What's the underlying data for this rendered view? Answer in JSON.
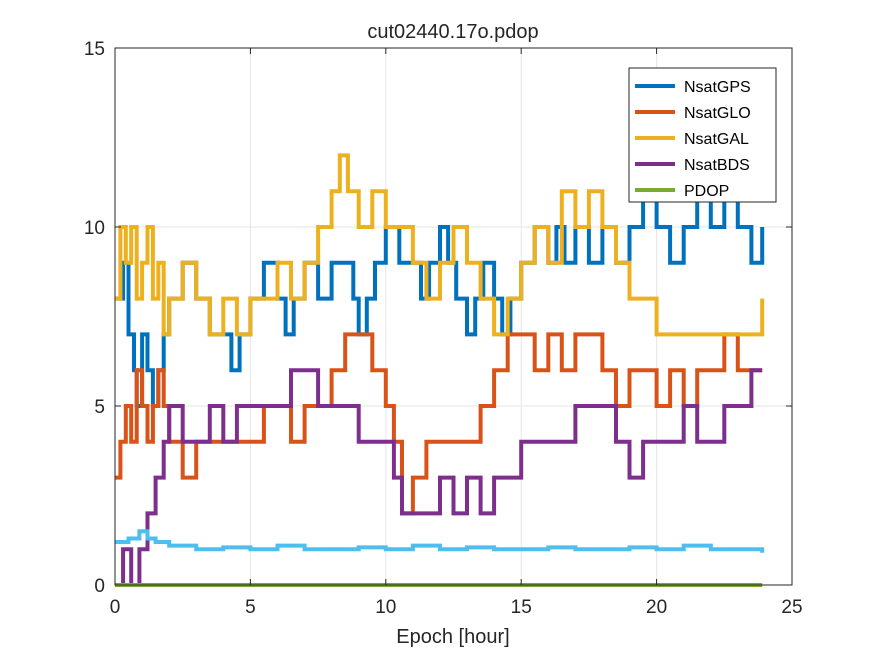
{
  "chart_data": {
    "type": "line",
    "title": "cut02440.17o.pdop",
    "xlabel": "Epoch [hour]",
    "ylabel": "",
    "xlim": [
      0,
      25
    ],
    "ylim": [
      0,
      15
    ],
    "xticks": [
      0,
      5,
      10,
      15,
      20,
      25
    ],
    "yticks": [
      0,
      5,
      10,
      15
    ],
    "grid": true,
    "legend_position": "top-right",
    "series": [
      {
        "name": "NsatGPS",
        "color": "#0072BD",
        "in_legend": true,
        "points": [
          [
            0,
            8
          ],
          [
            0.3,
            9
          ],
          [
            0.5,
            7
          ],
          [
            0.7,
            6
          ],
          [
            0.8,
            5
          ],
          [
            1.0,
            7
          ],
          [
            1.2,
            6
          ],
          [
            1.4,
            5
          ],
          [
            1.6,
            6
          ],
          [
            1.8,
            7
          ],
          [
            2.0,
            8
          ],
          [
            2.5,
            9
          ],
          [
            3.0,
            8
          ],
          [
            3.5,
            7
          ],
          [
            4.0,
            7
          ],
          [
            4.3,
            6
          ],
          [
            4.6,
            7
          ],
          [
            5.0,
            8
          ],
          [
            5.5,
            9
          ],
          [
            6.0,
            8
          ],
          [
            6.3,
            7
          ],
          [
            6.6,
            8
          ],
          [
            7.0,
            9
          ],
          [
            7.5,
            8
          ],
          [
            8.0,
            9
          ],
          [
            8.5,
            9
          ],
          [
            8.8,
            8
          ],
          [
            9.0,
            7
          ],
          [
            9.3,
            8
          ],
          [
            9.6,
            9
          ],
          [
            10.0,
            10
          ],
          [
            10.5,
            9
          ],
          [
            11.0,
            9
          ],
          [
            11.3,
            8
          ],
          [
            11.6,
            9
          ],
          [
            12.0,
            10
          ],
          [
            12.3,
            9
          ],
          [
            12.6,
            8
          ],
          [
            13.0,
            7
          ],
          [
            13.3,
            8
          ],
          [
            13.6,
            9
          ],
          [
            14.0,
            8
          ],
          [
            14.3,
            7
          ],
          [
            14.6,
            8
          ],
          [
            15.0,
            9
          ],
          [
            15.5,
            10
          ],
          [
            16.0,
            9
          ],
          [
            16.3,
            10
          ],
          [
            16.6,
            9
          ],
          [
            17.0,
            10
          ],
          [
            17.5,
            9
          ],
          [
            18.0,
            10
          ],
          [
            18.5,
            9
          ],
          [
            19.0,
            10
          ],
          [
            19.5,
            11
          ],
          [
            20.0,
            10
          ],
          [
            20.5,
            9
          ],
          [
            21.0,
            10
          ],
          [
            21.5,
            11
          ],
          [
            22.0,
            10
          ],
          [
            22.5,
            11
          ],
          [
            23.0,
            10
          ],
          [
            23.5,
            9
          ],
          [
            23.9,
            10
          ]
        ]
      },
      {
        "name": "NsatGLO",
        "color": "#D95319",
        "in_legend": true,
        "points": [
          [
            0,
            3
          ],
          [
            0.2,
            4
          ],
          [
            0.4,
            5
          ],
          [
            0.6,
            4
          ],
          [
            0.8,
            6
          ],
          [
            1.0,
            5
          ],
          [
            1.2,
            4
          ],
          [
            1.4,
            5
          ],
          [
            1.6,
            6
          ],
          [
            1.8,
            5
          ],
          [
            2.0,
            4
          ],
          [
            2.5,
            3
          ],
          [
            3.0,
            4
          ],
          [
            3.5,
            4
          ],
          [
            4.0,
            4
          ],
          [
            4.5,
            4
          ],
          [
            5.0,
            4
          ],
          [
            5.5,
            5
          ],
          [
            6.0,
            5
          ],
          [
            6.5,
            4
          ],
          [
            7.0,
            5
          ],
          [
            7.5,
            5
          ],
          [
            8.0,
            6
          ],
          [
            8.5,
            7
          ],
          [
            9.0,
            7
          ],
          [
            9.5,
            6
          ],
          [
            10.0,
            5
          ],
          [
            10.3,
            4
          ],
          [
            10.6,
            2
          ],
          [
            11.0,
            3
          ],
          [
            11.5,
            4
          ],
          [
            12.0,
            4
          ],
          [
            12.5,
            4
          ],
          [
            13.0,
            4
          ],
          [
            13.5,
            5
          ],
          [
            14.0,
            6
          ],
          [
            14.5,
            7
          ],
          [
            15.0,
            7
          ],
          [
            15.5,
            6
          ],
          [
            16.0,
            7
          ],
          [
            16.5,
            6
          ],
          [
            17.0,
            7
          ],
          [
            17.5,
            7
          ],
          [
            18.0,
            6
          ],
          [
            18.5,
            5
          ],
          [
            19.0,
            6
          ],
          [
            19.5,
            6
          ],
          [
            20.0,
            5
          ],
          [
            20.5,
            6
          ],
          [
            21.0,
            5
          ],
          [
            21.5,
            6
          ],
          [
            22.0,
            6
          ],
          [
            22.5,
            7
          ],
          [
            23.0,
            6
          ],
          [
            23.5,
            6
          ],
          [
            23.9,
            6
          ]
        ]
      },
      {
        "name": "NsatGAL",
        "color": "#EDB120",
        "in_legend": true,
        "points": [
          [
            0,
            8
          ],
          [
            0.2,
            10
          ],
          [
            0.4,
            9
          ],
          [
            0.6,
            10
          ],
          [
            0.8,
            8
          ],
          [
            1.0,
            9
          ],
          [
            1.2,
            10
          ],
          [
            1.4,
            8
          ],
          [
            1.6,
            9
          ],
          [
            1.8,
            7
          ],
          [
            2.0,
            8
          ],
          [
            2.5,
            9
          ],
          [
            3.0,
            8
          ],
          [
            3.5,
            7
          ],
          [
            4.0,
            8
          ],
          [
            4.5,
            7
          ],
          [
            5.0,
            8
          ],
          [
            5.5,
            8
          ],
          [
            6.0,
            9
          ],
          [
            6.5,
            8
          ],
          [
            7.0,
            9
          ],
          [
            7.5,
            10
          ],
          [
            8.0,
            11
          ],
          [
            8.3,
            12
          ],
          [
            8.6,
            11
          ],
          [
            9.0,
            10
          ],
          [
            9.5,
            11
          ],
          [
            10.0,
            10
          ],
          [
            10.5,
            10
          ],
          [
            11.0,
            9
          ],
          [
            11.5,
            8
          ],
          [
            12.0,
            9
          ],
          [
            12.5,
            10
          ],
          [
            13.0,
            9
          ],
          [
            13.5,
            8
          ],
          [
            14.0,
            7
          ],
          [
            14.5,
            8
          ],
          [
            15.0,
            9
          ],
          [
            15.5,
            10
          ],
          [
            16.0,
            9
          ],
          [
            16.5,
            11
          ],
          [
            17.0,
            10
          ],
          [
            17.5,
            11
          ],
          [
            18.0,
            10
          ],
          [
            18.5,
            9
          ],
          [
            19.0,
            8
          ],
          [
            19.5,
            8
          ],
          [
            20.0,
            7
          ],
          [
            20.5,
            7
          ],
          [
            21.0,
            7
          ],
          [
            21.5,
            7
          ],
          [
            22.0,
            7
          ],
          [
            22.5,
            7
          ],
          [
            23.0,
            7
          ],
          [
            23.5,
            7
          ],
          [
            23.9,
            8
          ]
        ]
      },
      {
        "name": "NsatBDS",
        "color": "#7E2F8E",
        "in_legend": true,
        "points": [
          [
            0,
            0
          ],
          [
            0.3,
            1
          ],
          [
            0.6,
            0
          ],
          [
            0.9,
            1
          ],
          [
            1.2,
            2
          ],
          [
            1.5,
            3
          ],
          [
            1.8,
            4
          ],
          [
            2.0,
            5
          ],
          [
            2.5,
            4
          ],
          [
            3.0,
            4
          ],
          [
            3.5,
            5
          ],
          [
            4.0,
            4
          ],
          [
            4.5,
            5
          ],
          [
            5.0,
            5
          ],
          [
            5.5,
            5
          ],
          [
            6.0,
            5
          ],
          [
            6.5,
            6
          ],
          [
            7.0,
            6
          ],
          [
            7.5,
            5
          ],
          [
            8.0,
            5
          ],
          [
            8.5,
            5
          ],
          [
            9.0,
            4
          ],
          [
            9.5,
            4
          ],
          [
            10.0,
            4
          ],
          [
            10.3,
            3
          ],
          [
            10.6,
            2
          ],
          [
            11.0,
            2
          ],
          [
            11.5,
            2
          ],
          [
            12.0,
            3
          ],
          [
            12.5,
            2
          ],
          [
            13.0,
            3
          ],
          [
            13.5,
            2
          ],
          [
            14.0,
            3
          ],
          [
            14.5,
            3
          ],
          [
            15.0,
            4
          ],
          [
            15.5,
            4
          ],
          [
            16.0,
            4
          ],
          [
            16.5,
            4
          ],
          [
            17.0,
            5
          ],
          [
            17.5,
            5
          ],
          [
            18.0,
            5
          ],
          [
            18.5,
            4
          ],
          [
            19.0,
            3
          ],
          [
            19.5,
            4
          ],
          [
            20.0,
            4
          ],
          [
            20.5,
            4
          ],
          [
            21.0,
            5
          ],
          [
            21.5,
            4
          ],
          [
            22.0,
            4
          ],
          [
            22.5,
            5
          ],
          [
            23.0,
            5
          ],
          [
            23.5,
            6
          ],
          [
            23.9,
            6
          ]
        ]
      },
      {
        "name": "PDOP",
        "color": "#77AC30",
        "in_legend": true,
        "points": [
          [
            0,
            0
          ],
          [
            23.9,
            0
          ]
        ]
      },
      {
        "name": "",
        "color": "#4DBEEE",
        "in_legend": false,
        "points": [
          [
            0,
            1.2
          ],
          [
            0.5,
            1.3
          ],
          [
            0.9,
            1.5
          ],
          [
            1.2,
            1.3
          ],
          [
            1.5,
            1.2
          ],
          [
            2.0,
            1.1
          ],
          [
            3.0,
            1.0
          ],
          [
            4.0,
            1.05
          ],
          [
            5.0,
            1.0
          ],
          [
            6.0,
            1.1
          ],
          [
            7.0,
            1.0
          ],
          [
            8.0,
            1.0
          ],
          [
            9.0,
            1.05
          ],
          [
            10.0,
            1.0
          ],
          [
            11.0,
            1.1
          ],
          [
            12.0,
            1.0
          ],
          [
            13.0,
            1.05
          ],
          [
            14.0,
            1.0
          ],
          [
            15.0,
            1.0
          ],
          [
            16.0,
            1.05
          ],
          [
            17.0,
            1.0
          ],
          [
            18.0,
            1.0
          ],
          [
            19.0,
            1.05
          ],
          [
            20.0,
            1.0
          ],
          [
            21.0,
            1.1
          ],
          [
            22.0,
            1.0
          ],
          [
            23.0,
            1.0
          ],
          [
            23.9,
            0.9
          ]
        ]
      }
    ]
  }
}
